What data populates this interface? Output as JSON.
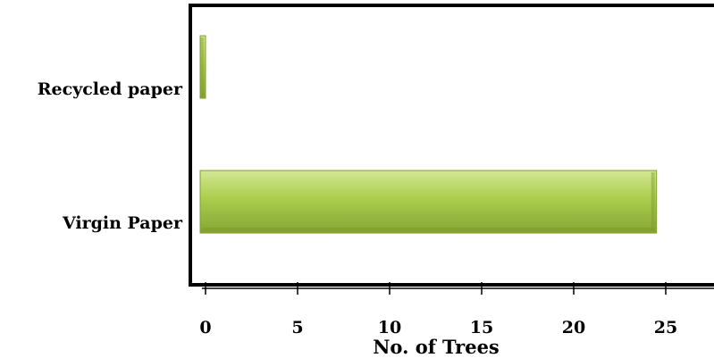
{
  "chart_data": {
    "type": "bar",
    "orientation": "horizontal",
    "categories": [
      "Recycled paper",
      "Virgin Paper"
    ],
    "values": [
      0,
      24.5
    ],
    "xlabel": "No. of Trees",
    "ylabel": "",
    "xlim": [
      0,
      25
    ],
    "xticks": [
      "0",
      "5",
      "10",
      "15",
      "20",
      "25"
    ],
    "grid": false,
    "colors": {
      "bar": "#a8cb4a",
      "bar_light": "#cfe48a",
      "bar_dark": "#7e9c2c",
      "frame": "#000000"
    }
  }
}
